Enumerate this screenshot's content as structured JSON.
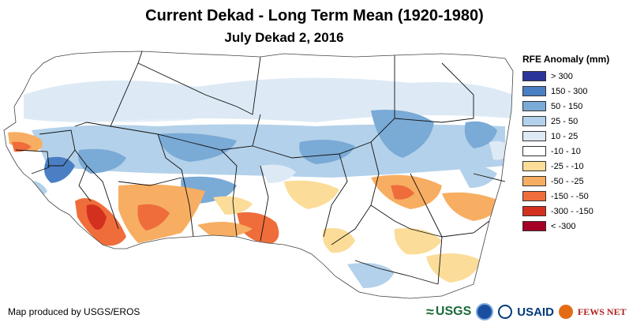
{
  "header": {
    "title": "Current Dekad - Long Term Mean (1920-1980)",
    "subtitle": "July Dekad 2, 2016"
  },
  "legend": {
    "title": "RFE Anomaly (mm)",
    "items": [
      {
        "label": "> 300",
        "color": "#2b3499"
      },
      {
        "label": "150 - 300",
        "color": "#4a7fc4"
      },
      {
        "label": "50 - 150",
        "color": "#7aaad6"
      },
      {
        "label": "25 - 50",
        "color": "#b3d1ea"
      },
      {
        "label": "10 - 25",
        "color": "#ddeaf5"
      },
      {
        "label": "-10 - 10",
        "color": "#ffffff"
      },
      {
        "label": "-25 - -10",
        "color": "#fbdc98"
      },
      {
        "label": "-50 - -25",
        "color": "#f7ae62"
      },
      {
        "label": "-150 - -50",
        "color": "#ef6d3b"
      },
      {
        "label": "-300 - -150",
        "color": "#d4301f"
      },
      {
        "label": "< -300",
        "color": "#a50026"
      }
    ]
  },
  "footer": {
    "credit": "Map produced by USGS/EROS",
    "logos": {
      "usgs": "USGS",
      "usgs_icon": "usgs-wave-icon",
      "noaa_icon": "noaa-seal-icon",
      "usaid": "USAID",
      "usaid_icon": "usaid-seal-icon",
      "fews": "FEWS NET",
      "fews_icon": "fews-net-icon"
    }
  }
}
